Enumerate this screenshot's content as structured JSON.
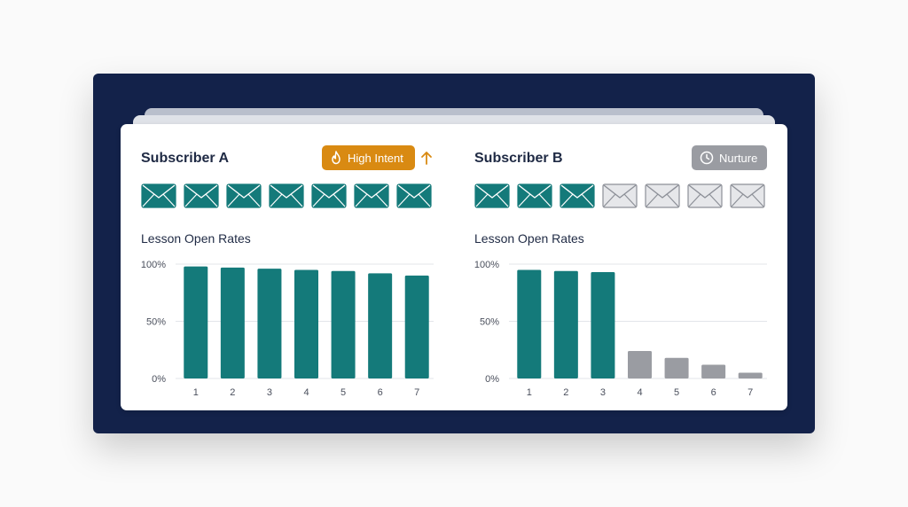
{
  "colors": {
    "frame": "#13224a",
    "teal": "#147a7a",
    "gray_bar": "#9a9ca2",
    "high_intent": "#d98a12",
    "nurture": "#9a9ca2"
  },
  "subscribers": [
    {
      "name": "Subscriber A",
      "badge": {
        "label": "High Intent",
        "icon": "flame-icon",
        "style": "high"
      },
      "trend_icon": "arrow-up-icon",
      "emails_opened": [
        true,
        true,
        true,
        true,
        true,
        true,
        true
      ],
      "chart_label": "Lesson Open Rates"
    },
    {
      "name": "Subscriber B",
      "badge": {
        "label": "Nurture",
        "icon": "clock-icon",
        "style": "nurture"
      },
      "trend_icon": null,
      "emails_opened": [
        true,
        true,
        true,
        false,
        false,
        false,
        false
      ],
      "chart_label": "Lesson Open Rates"
    }
  ],
  "chart_data": [
    {
      "type": "bar",
      "title": "Lesson Open Rates",
      "categories": [
        "1",
        "2",
        "3",
        "4",
        "5",
        "6",
        "7"
      ],
      "values": [
        98,
        97,
        96,
        95,
        94,
        92,
        90
      ],
      "bar_colors": [
        "#147a7a",
        "#147a7a",
        "#147a7a",
        "#147a7a",
        "#147a7a",
        "#147a7a",
        "#147a7a"
      ],
      "y_ticks": [
        "100%",
        "50%",
        "0%"
      ],
      "ylim": [
        0,
        100
      ],
      "grid": true
    },
    {
      "type": "bar",
      "title": "Lesson Open Rates",
      "categories": [
        "1",
        "2",
        "3",
        "4",
        "5",
        "6",
        "7"
      ],
      "values": [
        95,
        94,
        93,
        24,
        18,
        12,
        5
      ],
      "bar_colors": [
        "#147a7a",
        "#147a7a",
        "#147a7a",
        "#9a9ca2",
        "#9a9ca2",
        "#9a9ca2",
        "#9a9ca2"
      ],
      "y_ticks": [
        "100%",
        "50%",
        "0%"
      ],
      "ylim": [
        0,
        100
      ],
      "grid": true
    }
  ]
}
